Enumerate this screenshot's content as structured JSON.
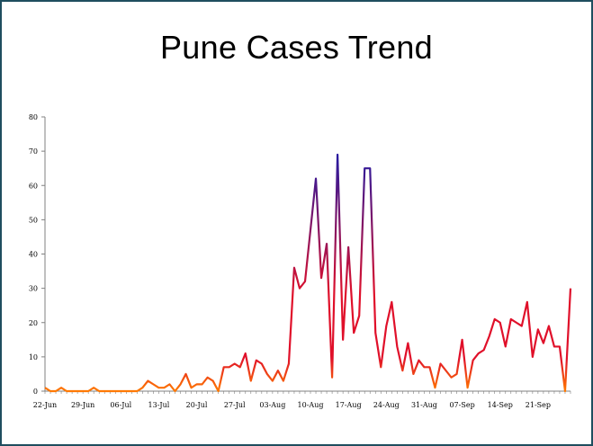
{
  "chart_data": {
    "type": "line",
    "title": "Pune Cases Trend",
    "xlabel": "",
    "ylabel": "",
    "ylim": [
      0,
      80
    ],
    "yticks": [
      "0",
      "10",
      "20",
      "30",
      "40",
      "50",
      "60",
      "70",
      "80"
    ],
    "x_tick_labels": [
      "22-Jun",
      "29-Jun",
      "06-Jul",
      "13-Jul",
      "20-Jul",
      "27-Jul",
      "03-Aug",
      "10-Aug",
      "17-Aug",
      "24-Aug",
      "31-Aug",
      "07-Sep",
      "14-Sep",
      "21-Sep"
    ],
    "x_tick_every": 7,
    "grid": false,
    "legend": "none",
    "series": [
      {
        "values": [
          1,
          0,
          0,
          1,
          0,
          0,
          0,
          0,
          0,
          1,
          0,
          0,
          0,
          0,
          0,
          0,
          0,
          0,
          1,
          3,
          2,
          1,
          1,
          2,
          0,
          2,
          5,
          1,
          2,
          2,
          4,
          3,
          0,
          7,
          7,
          8,
          7,
          11,
          3,
          9,
          8,
          5,
          3,
          6,
          3,
          8,
          36,
          30,
          32,
          47,
          62,
          33,
          43,
          4,
          69,
          15,
          42,
          17,
          22,
          65,
          65,
          17,
          7,
          19,
          26,
          13,
          6,
          14,
          5,
          9,
          7,
          7,
          1,
          8,
          6,
          4,
          5,
          15,
          1,
          9,
          11,
          12,
          16,
          21,
          20,
          13,
          21,
          20,
          19,
          26,
          10,
          18,
          14,
          19,
          13,
          13,
          0,
          30
        ]
      }
    ],
    "colors": {
      "low": "#ff7a00",
      "mid": "#e0102a",
      "high": "#2a1a9e",
      "axis": "#808080"
    }
  }
}
